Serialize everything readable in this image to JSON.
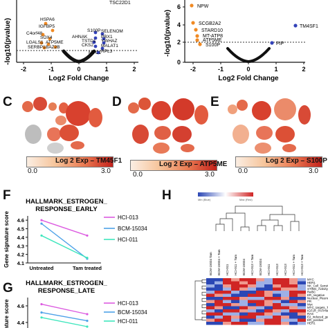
{
  "panel_a_volcano": {
    "xlabel": "Log2 Fold Change",
    "ylabel": "-log10(pvalue)",
    "x_ticks": [
      "-2",
      "-1",
      "0",
      "1",
      "2"
    ],
    "y_ticks": [],
    "top_label": "TSC22D1",
    "left_genes": [
      "HSPA6",
      "IGFBP5",
      "C4orf48",
      "SOX4",
      "LGALS1",
      "ATP5ME",
      "SERBP1",
      "BAZ2B"
    ],
    "right_genes": [
      "S100P",
      "SELENOM",
      "AHNAK",
      "PBX1",
      "TSTD1",
      "YWHAZ",
      "CKS2",
      "MALAT1",
      "MPC1",
      "RPL3"
    ]
  },
  "panel_b_volcano": {
    "xlabel": "Log2 Fold Change",
    "ylabel": "-log10(pvalue)",
    "x_ticks": [
      "-2",
      "-1",
      "0",
      "1",
      "2"
    ],
    "y_ticks": [
      "0",
      "2",
      "4",
      "6"
    ],
    "left_genes": [
      "NPW",
      "SCGB2A2",
      "STARD10",
      "MT-ATP8",
      "ATP5ME",
      "S100P"
    ],
    "right_genes": [
      "TM4SF1",
      "PIP"
    ]
  },
  "umap_panels": [
    {
      "letter": "C",
      "caption": "Log 2 Exp – TM45F1",
      "min": "0.0",
      "max": "3.0"
    },
    {
      "letter": "D",
      "caption": "Log 2 Exp – ATP5ME",
      "min": "0.0",
      "max": "3.0"
    },
    {
      "letter": "E",
      "caption": "Log 2 Exp – S100P",
      "min": "0.0",
      "max": "3.0"
    }
  ],
  "panel_f": {
    "letter": "F",
    "title_line1": "HALLMARK_ESTROGEN_",
    "title_line2": "RESPONSE_EARLY",
    "ylabel": "Gene signature score",
    "y_ticks": [
      "4.1",
      "4.2",
      "4.3",
      "4.4",
      "4.5",
      "4.6"
    ],
    "x_ticks": [
      "Untreated",
      "Tam treated"
    ]
  },
  "panel_g": {
    "letter": "G",
    "title_line1": "HALLMARK_ESTROGEN_",
    "title_line2": "RESPONSE_LATE",
    "ylabel": "ature score",
    "y_ticks": [
      "4.6",
      "4.4"
    ]
  },
  "panel_h": {
    "letter": "H",
    "legend_min": "Min (Blue)",
    "legend_max": "Max (Red)",
    "row_labels": [
      "MYC",
      "HER1",
      "NK_Cell_Sensitive_Mesenchymal",
      "STING_Activity",
      "Ral5C",
      "ER_negative",
      "Nuclear_Pleomorphism",
      "PR",
      "Myc",
      "MYC_targets_TERT",
      "IGF1R_PATHWAY",
      "RAS",
      "E2_induced_genes",
      "ER_positive",
      "HER1"
    ],
    "col_labels": [
      "BCM-15034 Tam",
      "BCM-15034 + Tam",
      "HCI-011",
      "HCI-011 + Tam",
      "BCM-15034",
      "HCI-013 + Tam",
      "BCM-15034",
      "HCI-011",
      "HCI-013",
      "HCI-013",
      "HCI-011 + Tam",
      "HCI-013 + Tam"
    ]
  },
  "chart_data": [
    {
      "type": "line",
      "title": "HALLMARK_ESTROGEN_ RESPONSE_EARLY",
      "xlabel": "",
      "ylabel": "Gene signature score",
      "categories": [
        "Untreated",
        "Tam treated"
      ],
      "ylim": [
        4.1,
        4.65
      ],
      "series": [
        {
          "name": "HCI-013",
          "color": "#dc5ae0",
          "values": [
            4.6,
            4.42
          ]
        },
        {
          "name": "BCM-15034",
          "color": "#4da1e8",
          "values": [
            4.56,
            4.15
          ]
        },
        {
          "name": "HCI-011",
          "color": "#3ee6bd",
          "values": [
            4.42,
            4.16
          ]
        }
      ]
    },
    {
      "type": "line",
      "title": "HALLMARK_ESTROGEN_ RESPONSE_LATE",
      "xlabel": "",
      "ylabel": "ature score",
      "categories": [
        "Untreated",
        "Tam treated"
      ],
      "ylim": [
        4.3,
        4.7
      ],
      "series": [
        {
          "name": "HCI-013",
          "color": "#dc5ae0",
          "values": [
            4.62,
            4.5
          ]
        },
        {
          "name": "BCM-15034",
          "color": "#4da1e8",
          "values": [
            4.52,
            4.42
          ]
        },
        {
          "name": "HCI-011",
          "color": "#3ee6bd",
          "values": [
            4.46,
            4.35
          ]
        }
      ]
    }
  ],
  "colors": {
    "orange": "#f08a24",
    "blue": "#3342b8",
    "black": "#111111",
    "red": "#d62424",
    "heat_blue": "#2b47b5",
    "heat_red": "#d02525"
  }
}
